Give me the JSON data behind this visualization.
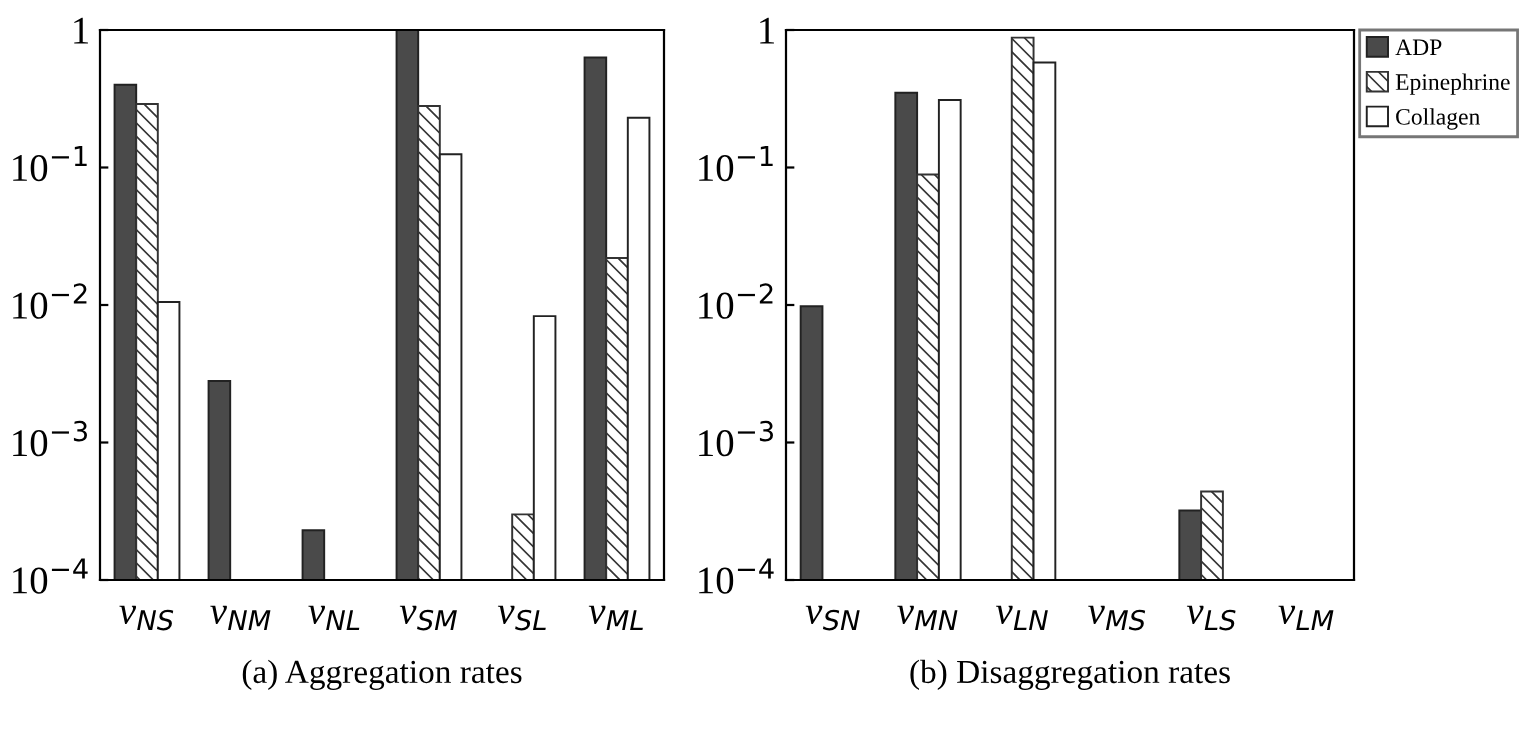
{
  "chart_data": [
    {
      "type": "bar",
      "xlabel": "(a) Aggregation rates",
      "categories": [
        "v$_{NS}$",
        "v$_{NM}$",
        "v$_{NL}$",
        "v$_{SM}$",
        "v$_{SL}$",
        "v$_{ML}$"
      ],
      "log": true,
      "ylim": [
        0.0001,
        1
      ],
      "yticks": [
        {
          "value": 0.0001,
          "label": "10$^{−4}$"
        },
        {
          "value": 0.001,
          "label": "10$^{−3}$"
        },
        {
          "value": 0.01,
          "label": "10$^{−2}$"
        },
        {
          "value": 0.1,
          "label": "10$^{−1}$"
        },
        1
      ],
      "grid": false,
      "legend": false,
      "series": [
        {
          "color": "#4a4a4a",
          "values": [
            0.4,
            0.0028,
            0.00023,
            1,
            null,
            0.63
          ]
        },
        {
          "color": "#333333",
          "values": [
            0.29,
            null,
            null,
            0.28,
            0.0003,
            0.022
          ]
        },
        {
          "color": "#ffffff",
          "values": [
            0.0105,
            null,
            null,
            0.125,
            0.0083,
            0.23
          ]
        }
      ]
    },
    {
      "type": "bar",
      "xlabel": "(b) Disaggregation rates",
      "categories": [
        "v$_{SN}$",
        "v$_{MN}$",
        "v$_{LN}$",
        "v$_{MS}$",
        "v$_{LS}$",
        "v$_{LM}$"
      ],
      "log": true,
      "ylim": [
        0.0001,
        1
      ],
      "yticks": [
        {
          "value": 0.0001,
          "label": "10$^{−4}$"
        },
        {
          "value": 0.001,
          "label": "10$^{−3}$"
        },
        {
          "value": 0.01,
          "label": "10$^{−2}$"
        },
        {
          "value": 0.1,
          "label": "10$^{−1}$"
        },
        1
      ],
      "grid": false,
      "legend": "top right",
      "series": [
        {
          "name": "ADP",
          "color": "#4a4a4a",
          "values": [
            0.0098,
            0.35,
            null,
            null,
            0.00032,
            null
          ]
        },
        {
          "name": "Epinephrine",
          "color": "#333333",
          "values": [
            null,
            0.089,
            0.88,
            null,
            0.00044,
            null
          ]
        },
        {
          "name": "Collagen",
          "color": "#ffffff",
          "values": [
            null,
            0.31,
            0.58,
            null,
            null,
            null
          ]
        }
      ]
    }
  ]
}
